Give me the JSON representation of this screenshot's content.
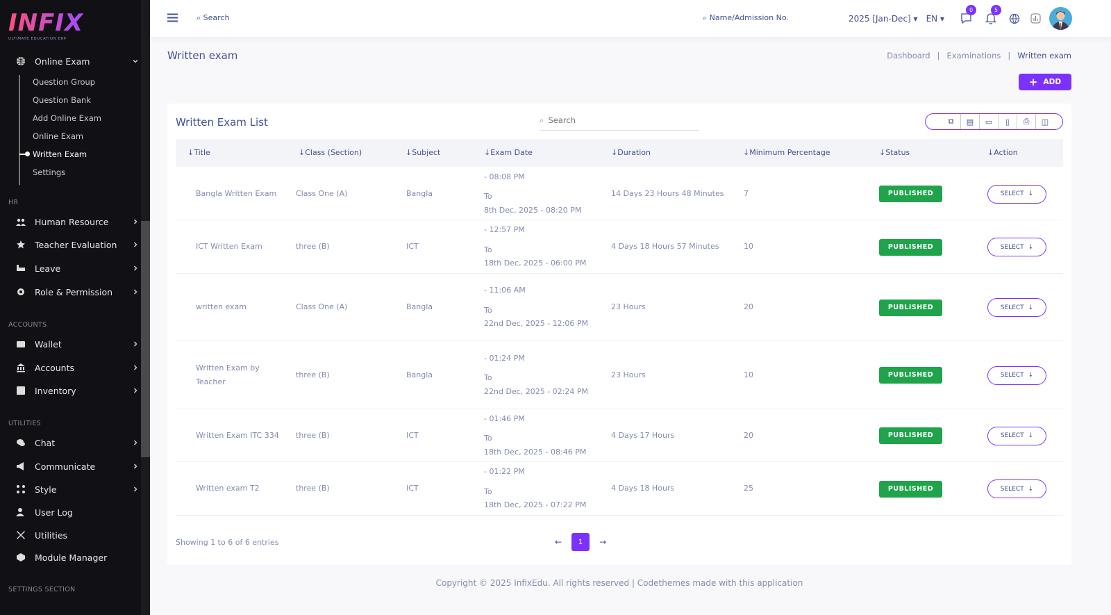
{
  "logo": {
    "text": "INFIX",
    "tagline": "ULTIMATE EDUCATION ERP"
  },
  "sidebar": {
    "online_exam": {
      "label": "Online Exam",
      "icon": "globe-icon",
      "items": [
        "Question Group",
        "Question Bank",
        "Add Online Exam",
        "Online Exam",
        "Written Exam",
        "Settings"
      ],
      "active": "Written Exam"
    },
    "sections": [
      {
        "title": "HR",
        "items": [
          {
            "label": "Human Resource",
            "icon": "users-icon"
          },
          {
            "label": "Teacher Evaluation",
            "icon": "star-icon"
          },
          {
            "label": "Leave",
            "icon": "bed-icon"
          },
          {
            "label": "Role & Permission",
            "icon": "gear-icon"
          }
        ]
      },
      {
        "title": "ACCOUNTS",
        "items": [
          {
            "label": "Wallet",
            "icon": "wallet-icon"
          },
          {
            "label": "Accounts",
            "icon": "bank-icon"
          },
          {
            "label": "Inventory",
            "icon": "inventory-icon"
          }
        ]
      },
      {
        "title": "UTILITIES",
        "items": [
          {
            "label": "Chat",
            "icon": "chat-icon"
          },
          {
            "label": "Communicate",
            "icon": "megaphone-icon"
          },
          {
            "label": "Style",
            "icon": "style-icon"
          },
          {
            "label": "User Log",
            "icon": "user-log-icon"
          },
          {
            "label": "Utilities",
            "icon": "tools-icon"
          },
          {
            "label": "Module Manager",
            "icon": "module-icon"
          }
        ]
      },
      {
        "title": "SETTINGS SECTION",
        "items": []
      }
    ]
  },
  "topbar": {
    "search": "Search",
    "admission_search": "Name/Admission No.",
    "session": "2025 [Jan-Dec]",
    "language": "EN",
    "messages_count": "0",
    "notifications_count": "5"
  },
  "page": {
    "title": "Written exam",
    "breadcrumb": [
      "Dashboard",
      "Examinations",
      "Written exam"
    ],
    "add_label": "ADD"
  },
  "card": {
    "title": "Written Exam List",
    "search_placeholder": "Search",
    "export_icons": [
      "copy-icon",
      "excel-icon",
      "csv-icon",
      "pdf-icon",
      "print-icon",
      "columns-icon"
    ],
    "columns": [
      "Title",
      "Class (Section)",
      "Subject",
      "Exam Date",
      "Duration",
      "Minimum Percentage",
      "Status",
      "Action"
    ],
    "rows": [
      {
        "title": "Bangla Written Exam",
        "class": "Class One (A)",
        "subject": "Bangla",
        "start": "- 08:08 PM",
        "to": "To",
        "end": "8th Dec, 2025 - 08:20 PM",
        "duration": "14 Days 23 Hours 48 Minutes",
        "min": "7",
        "status": "PUBLISHED",
        "action": "SELECT"
      },
      {
        "title": "ICT Written Exam",
        "class": "three (B)",
        "subject": "ICT",
        "start": "- 12:57 PM",
        "to": "To",
        "end": "18th Dec, 2025 - 06:00 PM",
        "duration": "4 Days 18 Hours 57 Minutes",
        "min": "10",
        "status": "PUBLISHED",
        "action": "SELECT"
      },
      {
        "title": "written exam",
        "class": "Class One (A)",
        "subject": "Bangla",
        "start": "- 11:06 AM",
        "to": "To",
        "end": "22nd Dec, 2025 - 12:06 PM",
        "duration": "23 Hours",
        "min": "20",
        "status": "PUBLISHED",
        "action": "SELECT"
      },
      {
        "title": "Written Exam by Teacher",
        "class": "three (B)",
        "subject": "Bangla",
        "start": "- 01:24 PM",
        "to": "To",
        "end": "22nd Dec, 2025 - 02:24 PM",
        "duration": "23 Hours",
        "min": "10",
        "status": "PUBLISHED",
        "action": "SELECT"
      },
      {
        "title": "Written Exam ITC 334",
        "class": "three (B)",
        "subject": "ICT",
        "start": "- 01:46 PM",
        "to": "To",
        "end": "18th Dec, 2025 - 08:46 PM",
        "duration": "4 Days 17 Hours",
        "min": "20",
        "status": "PUBLISHED",
        "action": "SELECT"
      },
      {
        "title": "Written exam T2",
        "class": "three (B)",
        "subject": "ICT",
        "start": "- 01:22 PM",
        "to": "To",
        "end": "18th Dec, 2025 - 07:22 PM",
        "duration": "4 Days 18 Hours",
        "min": "25",
        "status": "PUBLISHED",
        "action": "SELECT"
      }
    ],
    "showing": "Showing 1 to 6 of 6 entries",
    "current_page": "1"
  },
  "footer": "Copyright © 2025 InfixEdu. All rights reserved | Codethemes made with this application",
  "colors": {
    "accent": "#7c32ff",
    "published": "#1fa44b",
    "sidebar": "#111115"
  }
}
